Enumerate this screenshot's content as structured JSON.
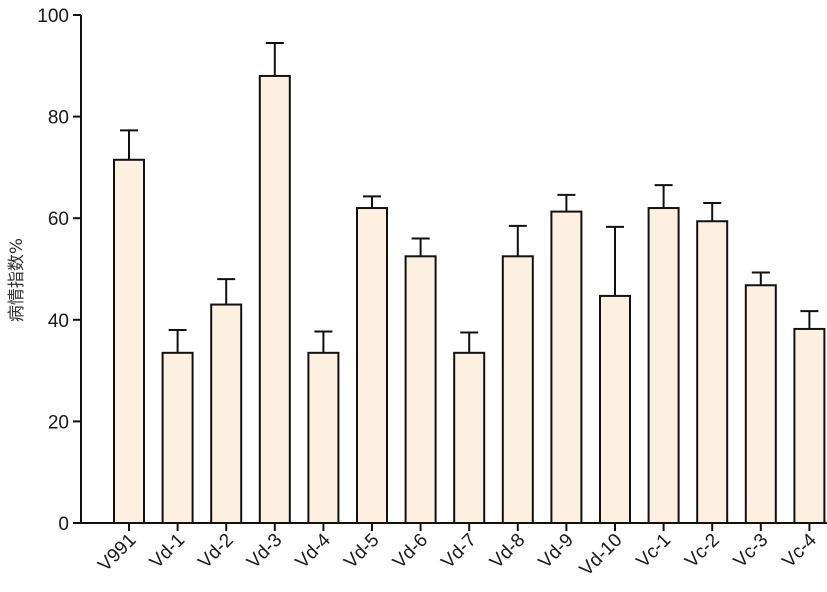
{
  "chart_data": {
    "type": "bar",
    "ylabel": "病情指数%",
    "ylim": [
      0,
      100
    ],
    "yticks": [
      0,
      20,
      40,
      60,
      80,
      100
    ],
    "grid": false,
    "categories": [
      "V991",
      "Vd-1",
      "Vd-2",
      "Vd-3",
      "Vd-4",
      "Vd-5",
      "Vd-6",
      "Vd-7",
      "Vd-8",
      "Vd-9",
      "Vd-10",
      "Vc-1",
      "Vc-2",
      "Vc-3",
      "Vc-4"
    ],
    "values": [
      71.5,
      33.5,
      43,
      88,
      33.5,
      62,
      52.5,
      33.5,
      52.5,
      61.3,
      44.7,
      62,
      59.4,
      46.8,
      38.2
    ],
    "errors": [
      5.8,
      4.5,
      5,
      6.5,
      4.2,
      2.3,
      3.5,
      4,
      6,
      3.3,
      13.6,
      4.5,
      3.6,
      2.5,
      3.5
    ],
    "bar_color": "#fdf0e0",
    "bar_stroke": "#111111"
  }
}
